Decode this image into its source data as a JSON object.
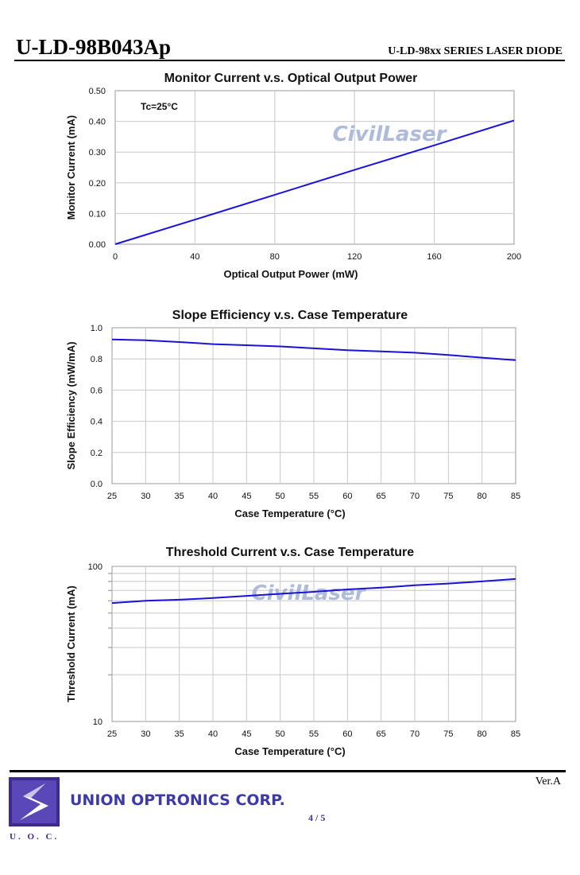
{
  "header": {
    "model": "U-LD-98B043Ap",
    "series": "U-LD-98xx SERIES LASER DIODE"
  },
  "watermark": "CivilLaser",
  "colors": {
    "curve": "#1a12d8",
    "grid": "#c8c8c8",
    "brand": "#3d3aa8"
  },
  "chart_data": [
    {
      "type": "line",
      "title": "Monitor Current v.s. Optical Output Power",
      "xlabel": "Optical Output Power (mW)",
      "ylabel": "Monitor Current (mA)",
      "annotation": "Tc=25°C",
      "xlim": [
        0,
        200
      ],
      "ylim": [
        0,
        0.5
      ],
      "yscale": "linear",
      "xticks": [
        "0",
        "40",
        "80",
        "120",
        "160",
        "200"
      ],
      "yticks": [
        "0.00",
        "0.10",
        "0.20",
        "0.30",
        "0.40",
        "0.50"
      ],
      "grid": true,
      "series": [
        {
          "x": [
            0,
            40,
            80,
            120,
            160,
            200
          ],
          "y": [
            0.0,
            0.08,
            0.161,
            0.242,
            0.322,
            0.403
          ]
        }
      ]
    },
    {
      "type": "line",
      "title": "Slope Efficiency v.s. Case Temperature",
      "xlabel": "Case Temperature (°C)",
      "ylabel": "Slope Efficiency (mW/mA)",
      "xlim": [
        25,
        85
      ],
      "ylim": [
        0,
        1.0
      ],
      "yscale": "linear",
      "xticks": [
        "25",
        "30",
        "35",
        "40",
        "45",
        "50",
        "55",
        "60",
        "65",
        "70",
        "75",
        "80",
        "85"
      ],
      "yticks": [
        "0.0",
        "0.2",
        "0.4",
        "0.6",
        "0.8",
        "1.0"
      ],
      "grid": true,
      "series": [
        {
          "x": [
            25,
            30,
            35,
            40,
            45,
            50,
            55,
            60,
            65,
            70,
            75,
            80,
            85
          ],
          "y": [
            0.925,
            0.92,
            0.908,
            0.895,
            0.888,
            0.88,
            0.868,
            0.856,
            0.848,
            0.84,
            0.825,
            0.808,
            0.792
          ]
        }
      ]
    },
    {
      "type": "line",
      "title": "Threshold Current v.s. Case Temperature",
      "xlabel": "Case Temperature (°C)",
      "ylabel": "Threshold Current (mA)",
      "xlim": [
        25,
        85
      ],
      "ylim": [
        10,
        100
      ],
      "yscale": "log",
      "xticks": [
        "25",
        "30",
        "35",
        "40",
        "45",
        "50",
        "55",
        "60",
        "65",
        "70",
        "75",
        "80",
        "85"
      ],
      "yticks": [
        "10",
        "100"
      ],
      "grid": true,
      "series": [
        {
          "x": [
            25,
            30,
            35,
            40,
            45,
            50,
            55,
            60,
            65,
            70,
            75,
            80,
            85
          ],
          "y": [
            58,
            60,
            61,
            62.5,
            64.5,
            66.5,
            68.5,
            71,
            73,
            75.5,
            77.5,
            80,
            83
          ]
        }
      ]
    }
  ],
  "footer": {
    "version": "Ver.A",
    "company": "UNION OPTRONICS CORP.",
    "logo_text": "U. O. C.",
    "page": "4 / 5"
  }
}
